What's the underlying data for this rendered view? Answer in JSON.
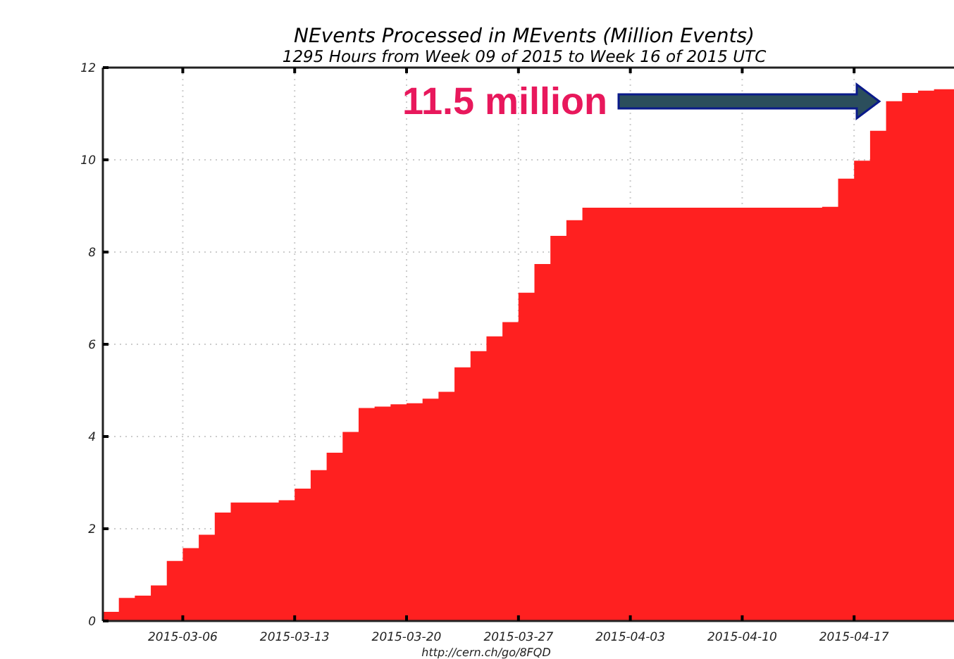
{
  "chart_data": {
    "type": "area",
    "title": "NEvents Processed in MEvents (Million Events)",
    "subtitle": "1295 Hours from Week 09 of 2015 to Week 16 of 2015 UTC",
    "x": [
      "2015-03-01",
      "2015-03-02",
      "2015-03-03",
      "2015-03-04",
      "2015-03-05",
      "2015-03-06",
      "2015-03-07",
      "2015-03-08",
      "2015-03-09",
      "2015-03-12",
      "2015-03-13",
      "2015-03-14",
      "2015-03-15",
      "2015-03-16",
      "2015-03-17",
      "2015-03-18",
      "2015-03-19",
      "2015-03-20",
      "2015-03-21",
      "2015-03-22",
      "2015-03-23",
      "2015-03-24",
      "2015-03-25",
      "2015-03-26",
      "2015-03-27",
      "2015-03-28",
      "2015-03-29",
      "2015-03-30",
      "2015-03-31",
      "2015-04-15",
      "2015-04-16",
      "2015-04-17",
      "2015-04-18",
      "2015-04-19",
      "2015-04-20",
      "2015-04-21",
      "2015-04-22",
      "2015-04-23T06:00"
    ],
    "series": [
      {
        "color": "#ff2020",
        "values": [
          0.2,
          0.5,
          0.55,
          0.77,
          1.3,
          1.58,
          1.87,
          2.35,
          2.57,
          2.62,
          2.87,
          3.27,
          3.65,
          4.1,
          4.62,
          4.65,
          4.7,
          4.72,
          4.82,
          4.97,
          5.5,
          5.85,
          6.17,
          6.48,
          7.12,
          7.74,
          8.35,
          8.69,
          8.96,
          8.98,
          9.59,
          9.98,
          10.63,
          11.27,
          11.45,
          11.5,
          11.53,
          11.55
        ]
      }
    ],
    "xlim": [
      "2015-03-01",
      "2015-04-23T06:00"
    ],
    "xticks": [
      {
        "value": "2015-03-06",
        "label": "2015-03-06"
      },
      {
        "value": "2015-03-13",
        "label": "2015-03-13"
      },
      {
        "value": "2015-03-20",
        "label": "2015-03-20"
      },
      {
        "value": "2015-03-27",
        "label": "2015-03-27"
      },
      {
        "value": "2015-04-03",
        "label": "2015-04-03"
      },
      {
        "value": "2015-04-10",
        "label": "2015-04-10"
      },
      {
        "value": "2015-04-17",
        "label": "2015-04-17"
      }
    ],
    "ylim": [
      0,
      12
    ],
    "yticks": [
      0,
      2,
      4,
      6,
      8,
      10,
      12
    ],
    "grid": true,
    "annotations": [
      "11.5 million",
      "http://cern.ch/go/8FQD"
    ]
  }
}
